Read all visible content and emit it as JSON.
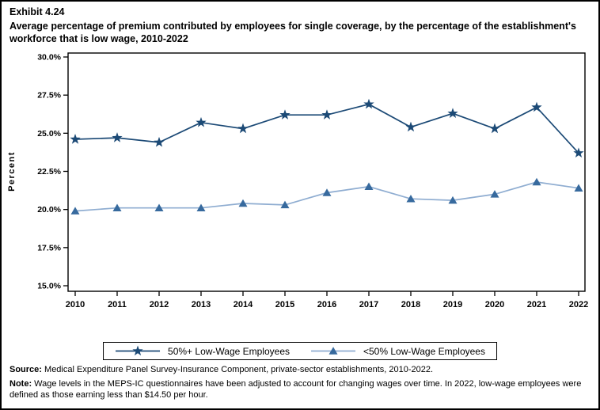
{
  "header": {
    "exhibit": "Exhibit 4.24",
    "title": "Average percentage of premium contributed by employees for single coverage, by the percentage of the establishment's workforce that is low wage, 2010-2022"
  },
  "chart_data": {
    "type": "line",
    "title": "Average percentage of premium contributed by employees for single coverage, by the percentage of the establishment's workforce that is low wage, 2010-2022",
    "xlabel": "",
    "ylabel": "Percent",
    "ylim": [
      15.0,
      30.0
    ],
    "grid": false,
    "legend_position": "bottom-center",
    "yticks": [
      {
        "value": 30.0,
        "label": "30.0%"
      },
      {
        "value": 27.5,
        "label": "27.5%"
      },
      {
        "value": 25.0,
        "label": "25.0%"
      },
      {
        "value": 22.5,
        "label": "22.5%"
      },
      {
        "value": 20.0,
        "label": "20.0%"
      },
      {
        "value": 17.5,
        "label": "17.5%"
      },
      {
        "value": 15.0,
        "label": "15.0%"
      }
    ],
    "x": [
      "2010",
      "2011",
      "2012",
      "2013",
      "2014",
      "2015",
      "2016",
      "2017",
      "2018",
      "2019",
      "2020",
      "2021",
      "2022"
    ],
    "series": [
      {
        "name": "50%+ Low-Wage Employees",
        "marker": "star",
        "marker_color": "#1c4a76",
        "line_color": "#1c4a76",
        "values": [
          24.6,
          24.7,
          24.4,
          25.7,
          25.3,
          26.2,
          26.2,
          26.9,
          25.4,
          26.3,
          25.3,
          26.7,
          23.7
        ]
      },
      {
        "name": "<50% Low-Wage Employees",
        "marker": "triangle",
        "marker_color": "#376a9e",
        "line_color": "#8fadd1",
        "values": [
          19.9,
          20.1,
          20.1,
          20.1,
          20.4,
          20.3,
          21.1,
          21.5,
          20.7,
          20.6,
          21.0,
          21.8,
          21.4
        ]
      }
    ]
  },
  "footer": {
    "source_label": "Source:",
    "source_text": "Medical Expenditure Panel Survey-Insurance Component, private-sector establishments, 2010-2022.",
    "note_label": "Note:",
    "note_text": "Wage levels in the MEPS-IC questionnaires have been adjusted to account for changing wages over time.  In 2022, low-wage employees were defined as those earning less than $14.50 per hour."
  },
  "colors": {
    "frame_border": "#000000",
    "plot_border": "#000000",
    "text": "#000000"
  }
}
